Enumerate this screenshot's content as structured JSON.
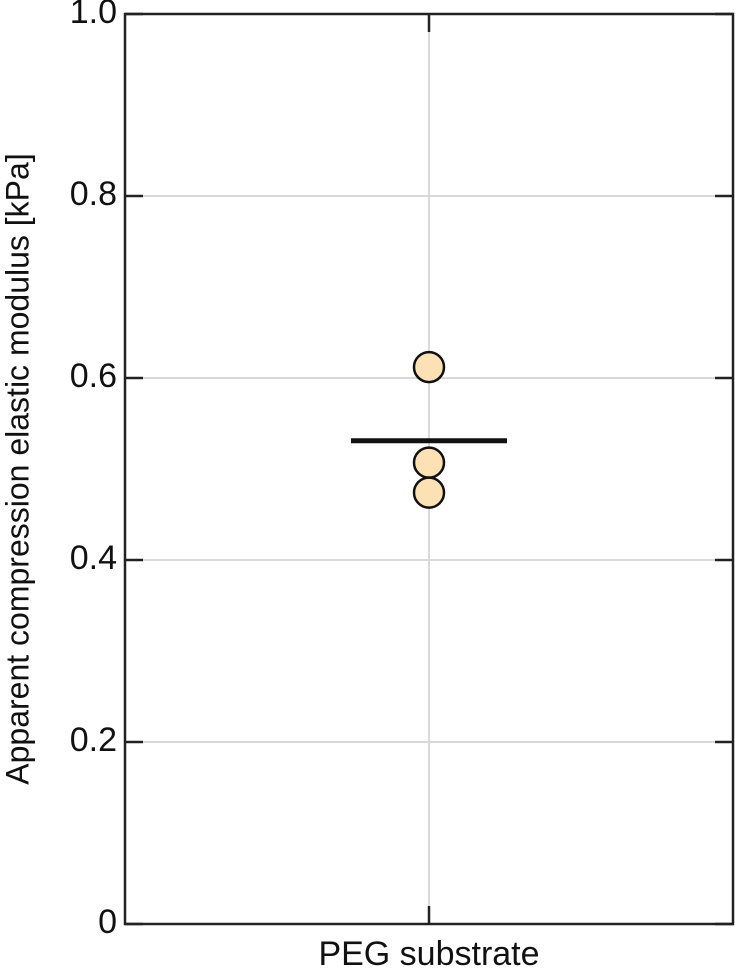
{
  "chart_data": {
    "type": "strip",
    "y_label": "Apparent compression elastic modulus  [kPa]",
    "categories": [
      "PEG substrate"
    ],
    "values": [
      0.612,
      0.507,
      0.474
    ],
    "mean": 0.531,
    "color": "#fce1b4",
    "ylim": [
      0,
      1
    ],
    "yticks": [
      0,
      0.2,
      0.4,
      0.6,
      0.8,
      {
        "value": 1,
        "label": "1.0"
      }
    ],
    "grid": true
  }
}
